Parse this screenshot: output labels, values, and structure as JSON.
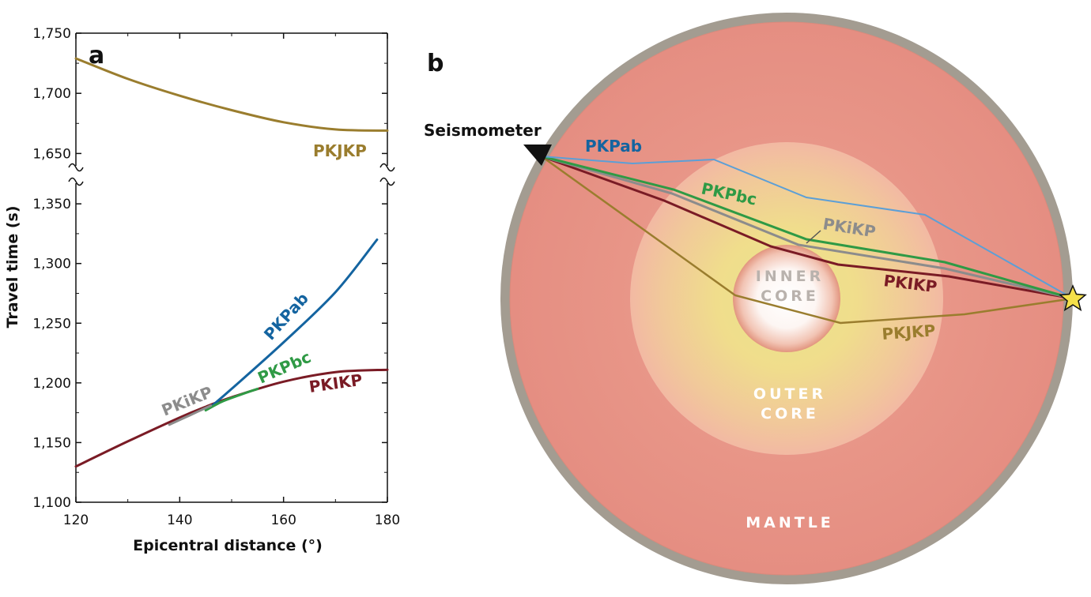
{
  "panel_a": {
    "label": "a"
  },
  "panel_b": {
    "label": "b",
    "seismometer_label": "Seismometer",
    "regions": {
      "inner_line1": "INNER",
      "inner_line2": "CORE",
      "outer_line1": "OUTER",
      "outer_line2": "CORE",
      "mantle": "MANTLE"
    },
    "ray_labels": {
      "pkpab": "PKPab",
      "pkpbc": "PKPbc",
      "pkikp": "PKIKP",
      "pkikp_diff": "PKiKP",
      "pkjkp": "PKJKP"
    },
    "colors": {
      "mantle": "#e6968a",
      "crust": "#a39c91",
      "outer_core_glow": "#f0e08a",
      "inner_core": "#ffffff",
      "star": "#f5e04a"
    }
  },
  "chart_data": {
    "type": "line",
    "xlabel": "Epicentral distance (°)",
    "ylabel": "Travel time (s)",
    "xlim": [
      120,
      180
    ],
    "ylim_lower": [
      1100,
      1360
    ],
    "ylim_upper": [
      1645,
      1750
    ],
    "axis_break": true,
    "x_ticks": [
      120,
      140,
      160,
      180
    ],
    "x_tick_labels": [
      "120",
      "140",
      "160",
      "180"
    ],
    "y_ticks": [
      1100,
      1150,
      1200,
      1250,
      1300,
      1350,
      1650,
      1700,
      1750
    ],
    "y_tick_labels": [
      "1,100",
      "1,150",
      "1,200",
      "1,250",
      "1,300",
      "1,350",
      "1,650",
      "1,700",
      "1,750"
    ],
    "series": [
      {
        "name": "PKJKP",
        "color": "#9a7d2e",
        "x": [
          120,
          130,
          140,
          150,
          160,
          170,
          180
        ],
        "y": [
          1729,
          1712,
          1698,
          1686,
          1676,
          1670,
          1669
        ]
      },
      {
        "name": "PKPab",
        "color": "#1464a0",
        "x": [
          146,
          150,
          160,
          170,
          178
        ],
        "y": [
          1180,
          1195,
          1234,
          1276,
          1320
        ]
      },
      {
        "name": "PKPbc",
        "color": "#2f9a45",
        "x": [
          145,
          148,
          151,
          155
        ],
        "y": [
          1177,
          1184,
          1189,
          1195
        ]
      },
      {
        "name": "PKiKP",
        "color": "#8c8c8c",
        "x": [
          138,
          142,
          146
        ],
        "y": [
          1165,
          1173,
          1181
        ]
      },
      {
        "name": "PKIKP",
        "color": "#7a1b25",
        "x": [
          120,
          130,
          140,
          145,
          150,
          160,
          170,
          180
        ],
        "y": [
          1130,
          1151,
          1171,
          1180,
          1188,
          1201,
          1209,
          1211
        ]
      }
    ]
  }
}
